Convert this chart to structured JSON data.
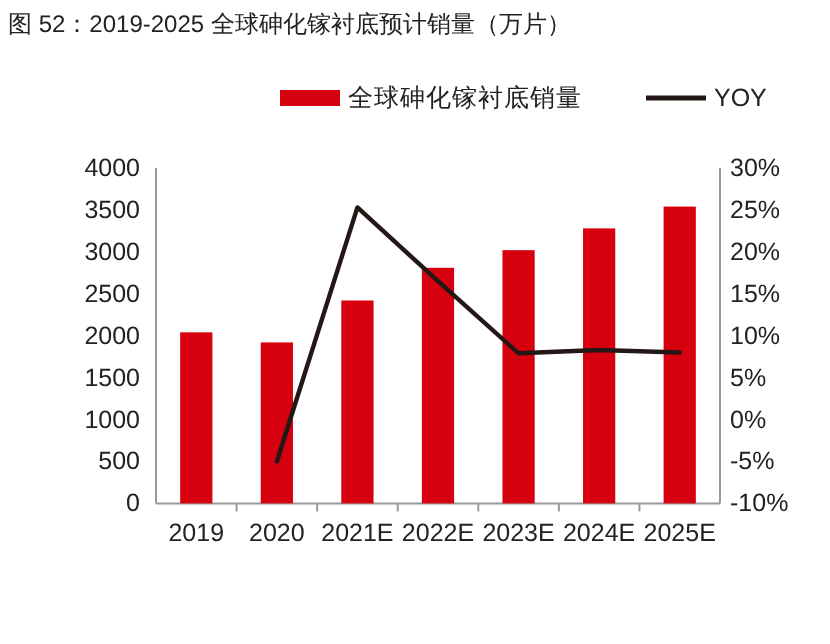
{
  "chart_data": {
    "type": "bar",
    "title": "图 52：2019-2025 全球砷化镓衬底预计销量（万片）",
    "categories": [
      "2019",
      "2020",
      "2021E",
      "2022E",
      "2023E",
      "2024E",
      "2025E"
    ],
    "series": [
      {
        "name": "全球砷化镓衬底销量",
        "color": "#d7000f",
        "values": [
          2040,
          1920,
          2420,
          2810,
          3020,
          3280,
          3540
        ]
      },
      {
        "name": "YOY",
        "type": "line",
        "axis": "y2",
        "color": "#231815",
        "values": [
          null,
          -5,
          25.3,
          16.5,
          7.9,
          8.3,
          8.0
        ]
      }
    ],
    "ylim": [
      0,
      4000
    ],
    "yticks": [
      0,
      500,
      1000,
      1500,
      2000,
      2500,
      3000,
      3500,
      4000
    ],
    "y2lim": [
      -10,
      30
    ],
    "y2ticks": [
      {
        "value": -10,
        "label": "-10%"
      },
      {
        "value": -5,
        "label": "-5%"
      },
      {
        "value": 0,
        "label": "0%"
      },
      {
        "value": 5,
        "label": "5%"
      },
      {
        "value": 10,
        "label": "10%"
      },
      {
        "value": 15,
        "label": "15%"
      },
      {
        "value": 20,
        "label": "20%"
      },
      {
        "value": 25,
        "label": "25%"
      },
      {
        "value": 30,
        "label": "30%"
      }
    ],
    "legend": "top"
  }
}
